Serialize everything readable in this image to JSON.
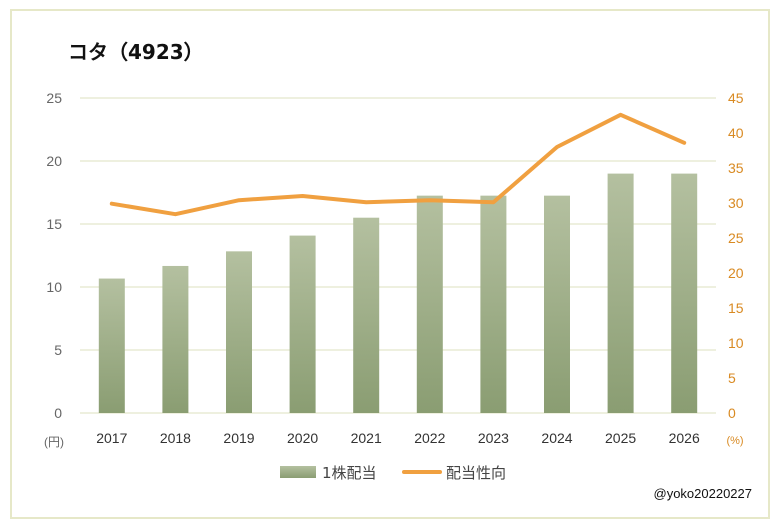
{
  "title": "コタ（4923）",
  "credit": "@yoko20220227",
  "chart_data": {
    "type": "bar",
    "categories": [
      "2017",
      "2018",
      "2019",
      "2020",
      "2021",
      "2022",
      "2023",
      "2024",
      "2025",
      "2026"
    ],
    "series": [
      {
        "name": "1株配当",
        "type": "bar",
        "axis": "left",
        "color": "#9aaa82",
        "values": [
          10.67,
          11.67,
          12.83,
          14.08,
          15.5,
          17.25,
          17.25,
          17.25,
          19.0,
          19.0
        ]
      },
      {
        "name": "配当性向",
        "type": "line",
        "axis": "right",
        "color": "#f0a040",
        "values": [
          29.9,
          28.4,
          30.4,
          31.0,
          30.1,
          30.4,
          30.1,
          38.0,
          42.6,
          38.6
        ]
      }
    ],
    "y_left": {
      "min": 0,
      "max": 25,
      "ticks": [
        0,
        5,
        10,
        15,
        20,
        25
      ],
      "unit": "(円)"
    },
    "y_right": {
      "min": 0,
      "max": 45,
      "ticks": [
        0,
        5,
        10,
        15,
        20,
        25,
        30,
        35,
        40,
        45
      ],
      "unit": "(%)"
    },
    "grid": true,
    "legend_position": "bottom"
  }
}
